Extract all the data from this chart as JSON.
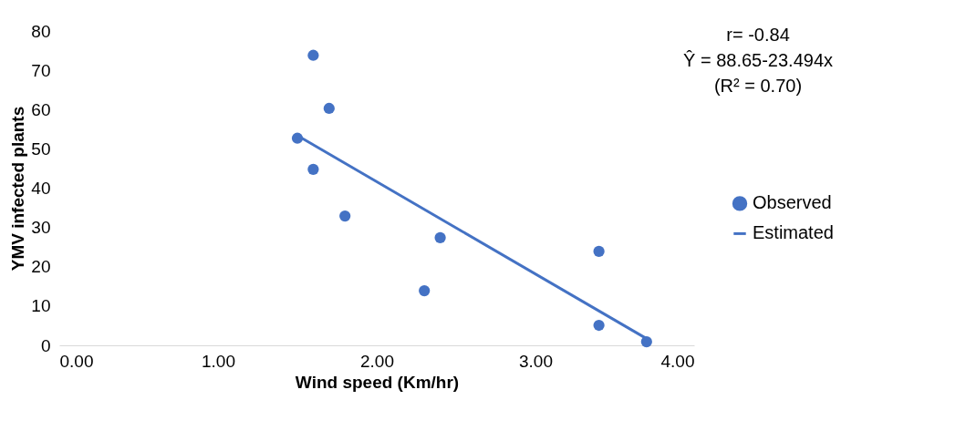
{
  "chart_data": {
    "type": "scatter",
    "xlabel": "Wind speed (Km/hr)",
    "ylabel": "YMV infected plants",
    "annotations": [
      "r= -0.84",
      "Ŷ = 88.65-23.494x",
      "(R² = 0.70)"
    ],
    "series": [
      {
        "name": "Observed",
        "marker": "circle",
        "color": "#4472c4",
        "x": [
          1.5,
          1.6,
          1.7,
          1.6,
          1.8,
          2.4,
          2.3,
          3.4,
          3.4,
          3.7
        ],
        "values": [
          52.7,
          73.8,
          60.3,
          44.8,
          32.9,
          27.4,
          13.9,
          23.9,
          5.1,
          0.9
        ]
      },
      {
        "name": "Estimated",
        "type": "line",
        "color": "#4472c4",
        "x": [
          1.5,
          3.7
        ],
        "values": [
          53.4,
          1.7
        ]
      }
    ],
    "xlim": [
      0,
      4
    ],
    "xticks": [
      {
        "value": 0,
        "label": "0.00"
      },
      {
        "value": 1,
        "label": "1.00"
      },
      {
        "value": 2,
        "label": "2.00"
      },
      {
        "value": 3,
        "label": "3.00"
      },
      {
        "value": 4,
        "label": "4.00"
      }
    ],
    "ylim": [
      0,
      80
    ],
    "yticks": [
      0,
      10,
      20,
      30,
      40,
      50,
      60,
      70,
      80
    ],
    "grid": false,
    "legend": "right",
    "line_style": "solid"
  }
}
